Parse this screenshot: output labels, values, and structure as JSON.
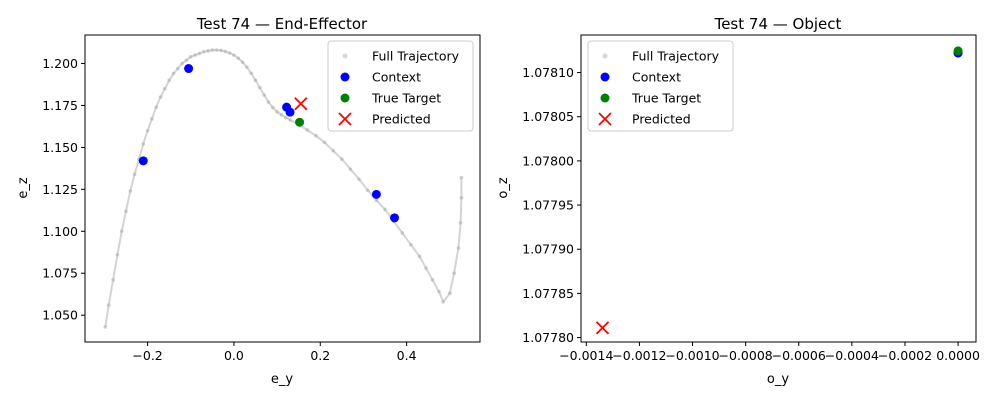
{
  "chart_data": [
    {
      "type": "scatter",
      "title": "Test 74 — End-Effector",
      "xlabel": "e_y",
      "ylabel": "e_z",
      "xlim": [
        -0.345,
        0.57
      ],
      "ylim": [
        1.034,
        1.217
      ],
      "xticks": [
        -0.2,
        0.0,
        0.2,
        0.4
      ],
      "xtick_labels": [
        "−0.2",
        "0.0",
        "0.2",
        "0.4"
      ],
      "yticks": [
        1.05,
        1.075,
        1.1,
        1.125,
        1.15,
        1.175,
        1.2
      ],
      "ytick_labels": [
        "1.050",
        "1.075",
        "1.100",
        "1.125",
        "1.150",
        "1.175",
        "1.200"
      ],
      "grid": false,
      "legend_position": "upper right",
      "series": [
        {
          "name": "Full Trajectory",
          "kind": "line-points",
          "color": "#b0b0b0",
          "x": [
            -0.298,
            -0.29,
            -0.28,
            -0.27,
            -0.26,
            -0.25,
            -0.24,
            -0.23,
            -0.22,
            -0.21,
            -0.2,
            -0.19,
            -0.18,
            -0.17,
            -0.16,
            -0.15,
            -0.14,
            -0.13,
            -0.12,
            -0.11,
            -0.1,
            -0.09,
            -0.08,
            -0.07,
            -0.06,
            -0.05,
            -0.04,
            -0.03,
            -0.02,
            -0.01,
            0.0,
            0.01,
            0.02,
            0.03,
            0.04,
            0.05,
            0.06,
            0.07,
            0.08,
            0.09,
            0.1,
            0.11,
            0.12,
            0.13,
            0.15,
            0.17,
            0.19,
            0.21,
            0.23,
            0.25,
            0.27,
            0.29,
            0.31,
            0.33,
            0.35,
            0.37,
            0.39,
            0.41,
            0.43,
            0.445,
            0.46,
            0.475,
            0.485,
            0.5,
            0.51,
            0.52,
            0.525,
            0.527,
            0.527
          ],
          "y": [
            1.043,
            1.056,
            1.071,
            1.086,
            1.1,
            1.112,
            1.124,
            1.134,
            1.143,
            1.152,
            1.16,
            1.167,
            1.174,
            1.18,
            1.185,
            1.19,
            1.194,
            1.197,
            1.2,
            1.202,
            1.204,
            1.205,
            1.206,
            1.207,
            1.2075,
            1.208,
            1.208,
            1.2078,
            1.2072,
            1.2063,
            1.205,
            1.2032,
            1.2008,
            1.1978,
            1.1942,
            1.19,
            1.1856,
            1.1812,
            1.177,
            1.1738,
            1.1712,
            1.1694,
            1.1678,
            1.1664,
            1.1636,
            1.1604,
            1.157,
            1.153,
            1.148,
            1.143,
            1.137,
            1.131,
            1.1245,
            1.1185,
            1.113,
            1.106,
            1.099,
            1.092,
            1.085,
            1.078,
            1.071,
            1.064,
            1.058,
            1.063,
            1.075,
            1.09,
            1.105,
            1.12,
            1.132
          ]
        },
        {
          "name": "Context",
          "kind": "points",
          "color": "#0000ff",
          "x": [
            -0.21,
            -0.105,
            0.122,
            0.13,
            0.33,
            0.372
          ],
          "y": [
            1.142,
            1.197,
            1.174,
            1.171,
            1.122,
            1.108
          ]
        },
        {
          "name": "True Target",
          "kind": "points",
          "color": "#008000",
          "x": [
            0.152
          ],
          "y": [
            1.165
          ]
        },
        {
          "name": "Predicted",
          "kind": "x-marker",
          "color": "#ff0000",
          "x": [
            0.155
          ],
          "y": [
            1.176
          ]
        }
      ]
    },
    {
      "type": "scatter",
      "title": "Test 74 — Object",
      "xlabel": "o_y",
      "ylabel": "o_z",
      "xlim": [
        -0.00142,
        6.75e-05
      ],
      "ylim": [
        1.077795,
        1.0781425
      ],
      "xticks": [
        -0.0014,
        -0.0012,
        -0.001,
        -0.0008,
        -0.0006,
        -0.0004,
        -0.0002,
        0.0
      ],
      "xtick_labels": [
        "−0.0014",
        "−0.0012",
        "−0.0010",
        "−0.0008",
        "−0.0006",
        "−0.0004",
        "−0.0002",
        "0.0000"
      ],
      "yticks": [
        1.0778,
        1.07785,
        1.0779,
        1.07795,
        1.078,
        1.07805,
        1.0781
      ],
      "ytick_labels": [
        "1.07780",
        "1.07785",
        "1.07790",
        "1.07795",
        "1.07800",
        "1.07805",
        "1.07810"
      ],
      "grid": false,
      "legend_position": "upper left",
      "series": [
        {
          "name": "Full Trajectory",
          "kind": "points",
          "color": "#b0b0b0",
          "x": [
            0.0
          ],
          "y": [
            1.078122
          ]
        },
        {
          "name": "Context",
          "kind": "points",
          "color": "#0000ff",
          "x": [
            0.0,
            0.0
          ],
          "y": [
            1.078122,
            1.0781225
          ]
        },
        {
          "name": "True Target",
          "kind": "points",
          "color": "#008000",
          "x": [
            0.0
          ],
          "y": [
            1.0781245
          ]
        },
        {
          "name": "Predicted",
          "kind": "x-marker",
          "color": "#ff0000",
          "x": [
            -0.001339
          ],
          "y": [
            1.077811
          ]
        }
      ]
    }
  ]
}
